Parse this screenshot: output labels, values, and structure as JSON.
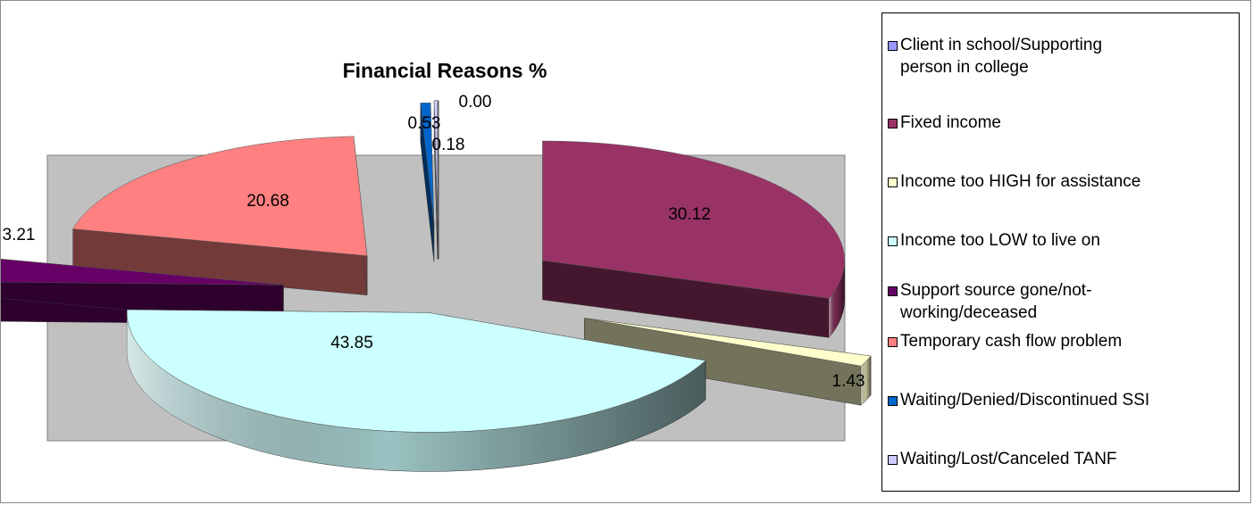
{
  "chart_data": {
    "type": "pie",
    "title": "Financial Reasons %",
    "categories": [
      "Client in school/Supporting person in college",
      "Fixed income",
      "Income too HIGH for assistance",
      "Income too LOW to live on",
      "Support source gone/not-working/deceased",
      "Temporary cash flow problem",
      "Waiting/Denied/Discontinued SSI",
      "Waiting/Lost/Canceled TANF"
    ],
    "values": [
      0.0,
      30.12,
      1.43,
      43.85,
      3.21,
      20.68,
      0.53,
      0.18
    ],
    "data_labels": [
      "0.00",
      "30.12",
      "1.43",
      "43.85",
      "3.21",
      "20.68",
      "0.53",
      "0.18"
    ],
    "colors": [
      "#9999ff",
      "#993366",
      "#ffffcc",
      "#ccffff",
      "#660066",
      "#ff8080",
      "#0066cc",
      "#ccccff"
    ],
    "plot_background": "#c0c0c0",
    "legend_position": "right",
    "style": "3d-exploded"
  },
  "legend": {
    "items": [
      "Client in school/Supporting\nperson in college",
      "Fixed income",
      "Income too HIGH for assistance",
      "Income too LOW to live on",
      "Support source gone/not-\nworking/deceased",
      "Temporary cash flow problem",
      "Waiting/Denied/Discontinued SSI",
      "Waiting/Lost/Canceled TANF"
    ]
  }
}
